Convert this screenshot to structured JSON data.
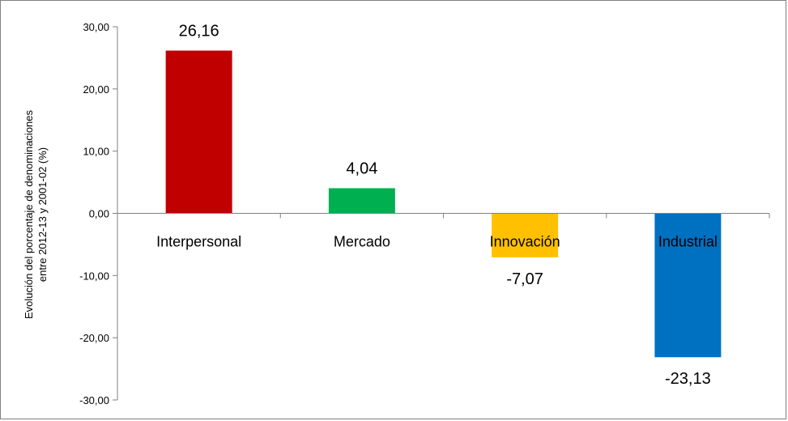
{
  "chart_data": {
    "type": "bar",
    "categories": [
      "Interpersonal",
      "Mercado",
      "Innovación",
      "Industrial"
    ],
    "values": [
      26.16,
      4.04,
      -7.07,
      -23.13
    ],
    "data_labels": [
      "26,16",
      "4,04",
      "-7,07",
      "-23,13"
    ],
    "colors": [
      "#c00000",
      "#00b050",
      "#ffc000",
      "#0070c0"
    ],
    "ylabel_line1": "Evolución del porcentaje de denominaciones",
    "ylabel_line2": "entre 2012-13 y 2001-02 (%)",
    "ylim": [
      -30,
      30
    ],
    "yticks": [
      30,
      20,
      10,
      0,
      -10,
      -20,
      -30
    ],
    "ytick_labels": [
      "30,00",
      "20,00",
      "10,00",
      "0,00",
      "-10,00",
      "-20,00",
      "-30,00"
    ],
    "grid": false,
    "legend": "none"
  }
}
